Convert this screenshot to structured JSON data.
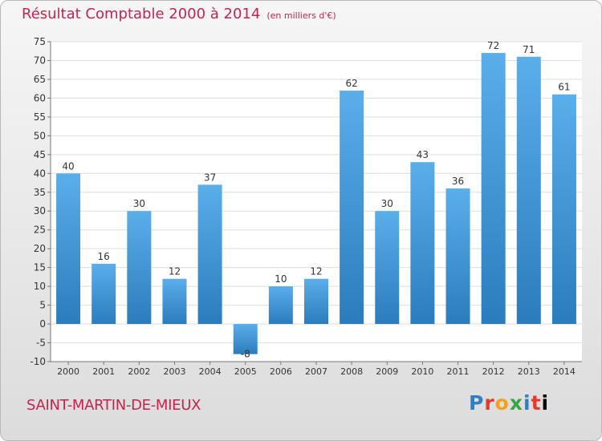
{
  "header": {
    "title": "Résultat Comptable 2000 à 2014",
    "unit": "(en milliers d'€)"
  },
  "footer": {
    "commune": "SAINT-MARTIN-DE-MIEUX",
    "logo_letters": [
      "P",
      "r",
      "o",
      "x",
      "i",
      "t",
      "i"
    ]
  },
  "colors": {
    "title": "#c0264e",
    "bar_light": "#5aaeea",
    "bar_dark": "#2b7cbd"
  },
  "chart_data": {
    "type": "bar",
    "title": "Résultat Comptable 2000 à 2014",
    "subtitle": "(en milliers d'€)",
    "categories": [
      "2000",
      "2001",
      "2002",
      "2003",
      "2004",
      "2005",
      "2006",
      "2007",
      "2008",
      "2009",
      "2010",
      "2011",
      "2012",
      "2013",
      "2014"
    ],
    "values": [
      40,
      16,
      30,
      12,
      37,
      -8,
      10,
      12,
      62,
      30,
      43,
      36,
      72,
      71,
      61
    ],
    "ylim": [
      -10,
      75
    ],
    "yticks": [
      -10,
      -5,
      0,
      5,
      10,
      15,
      20,
      25,
      30,
      35,
      40,
      45,
      50,
      55,
      60,
      65,
      70,
      75
    ],
    "grid": true,
    "xlabel": "",
    "ylabel": ""
  }
}
